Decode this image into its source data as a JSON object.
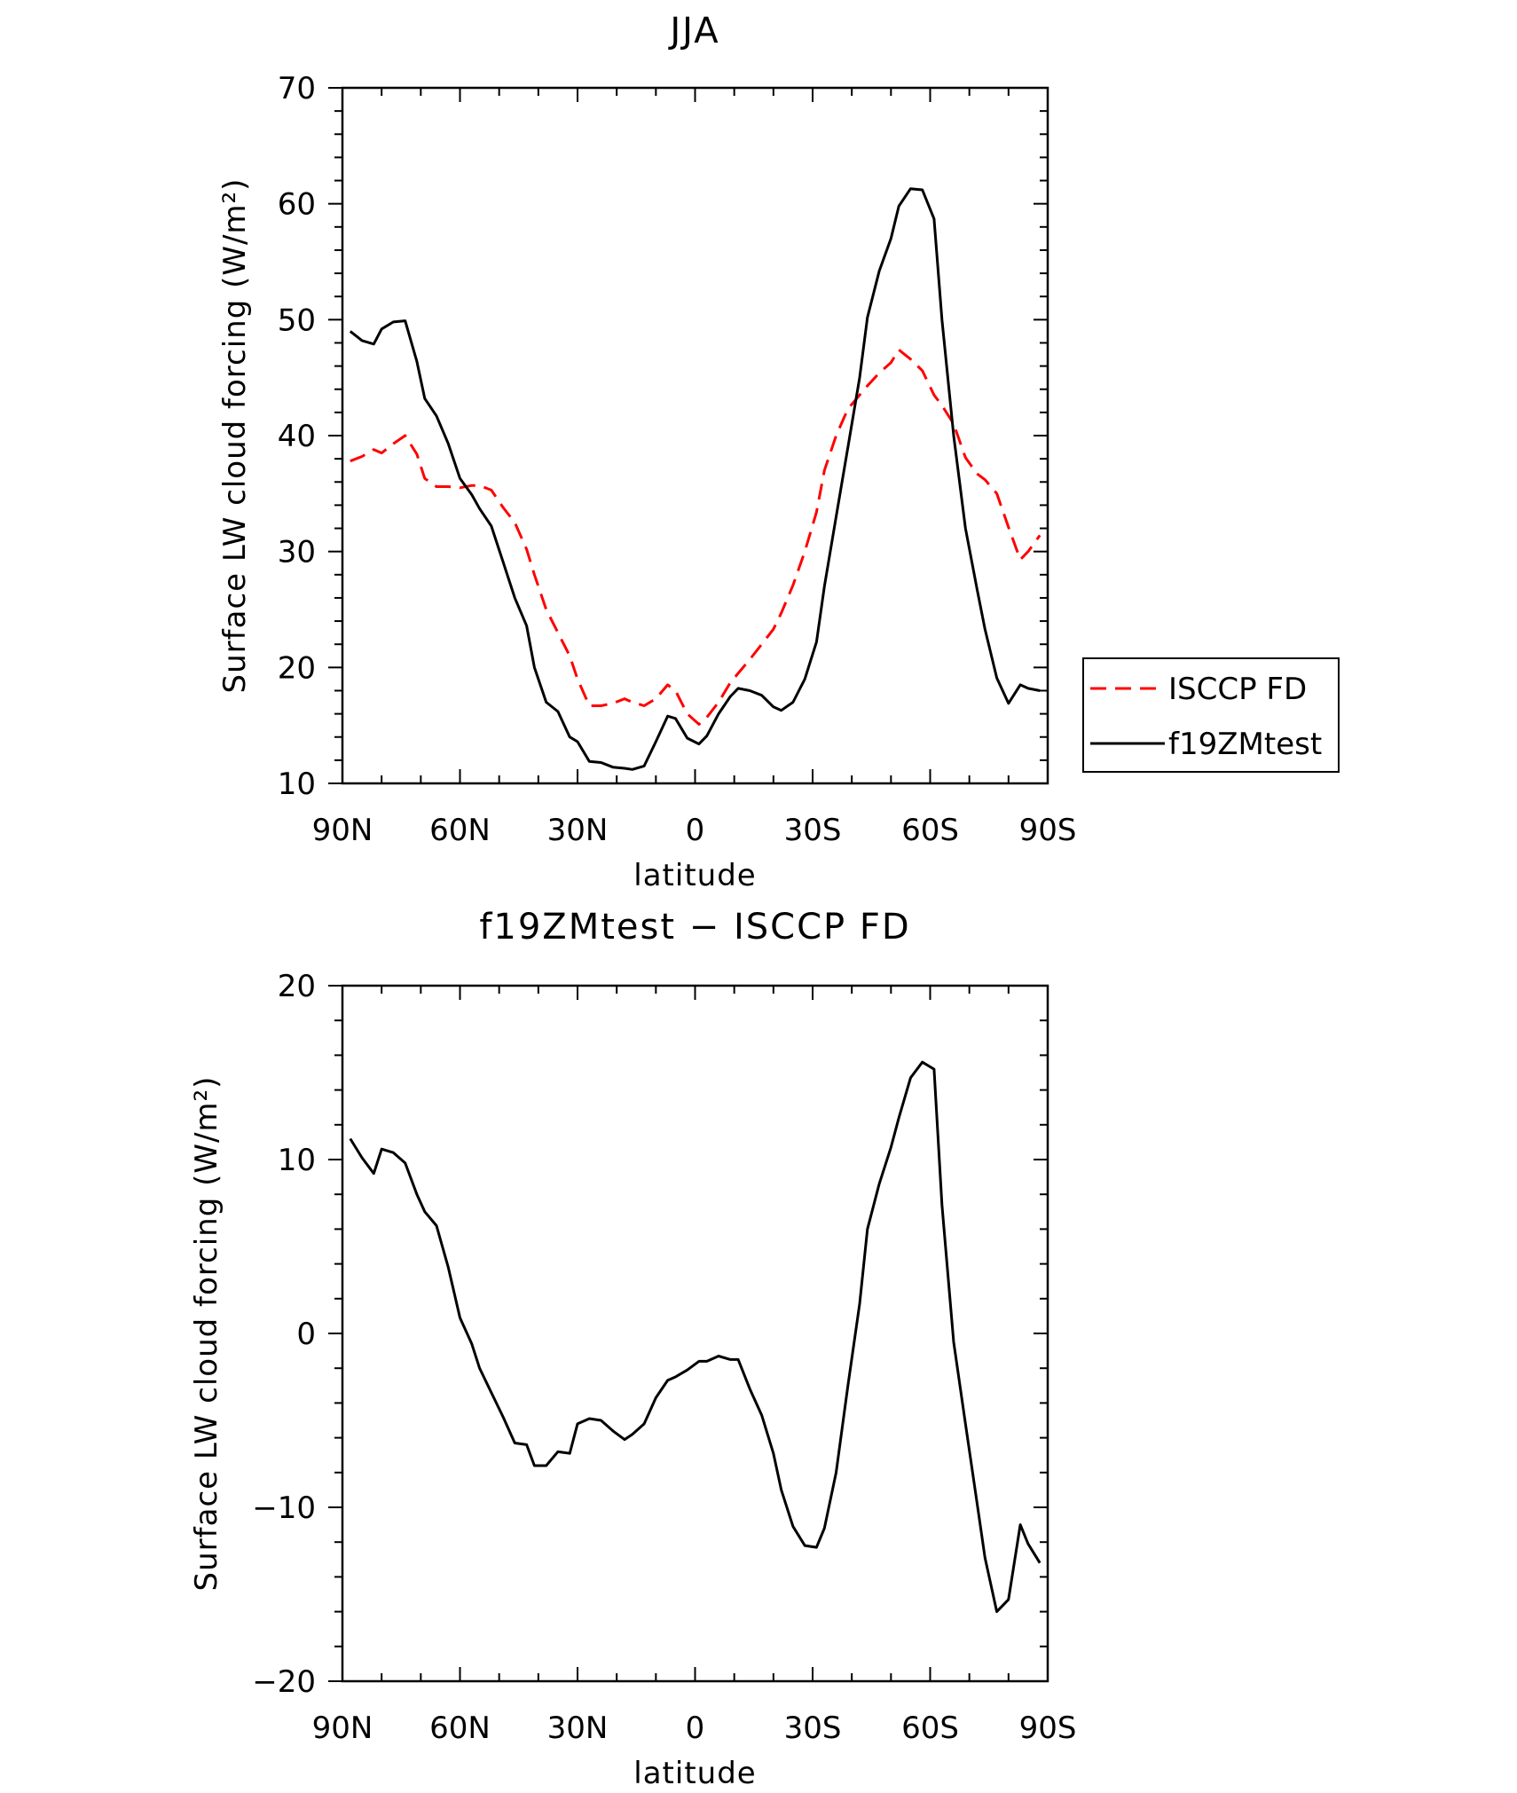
{
  "chart_data": [
    {
      "type": "line",
      "title": "JJA",
      "xlabel": "latitude",
      "ylabel": "Surface LW cloud forcing (W/m²)",
      "xlim": [
        90,
        -90
      ],
      "ylim": [
        10,
        70
      ],
      "x_ticks": [
        90,
        60,
        30,
        0,
        -30,
        -60,
        -90
      ],
      "x_tick_labels": [
        "90N",
        "60N",
        "30N",
        "0",
        "30S",
        "60S",
        "90S"
      ],
      "y_ticks": [
        10,
        20,
        30,
        40,
        50,
        60,
        70
      ],
      "y_tick_labels": [
        "10",
        "20",
        "30",
        "40",
        "50",
        "60",
        "70"
      ],
      "legend_position": "right",
      "series": [
        {
          "name": "ISCCP FD",
          "color": "#ff0000",
          "dash": "dashed",
          "x": [
            88,
            85,
            82,
            80,
            77,
            74,
            71,
            69,
            66,
            63,
            60,
            57,
            55,
            52,
            49,
            46,
            43,
            41,
            38,
            35,
            32,
            30,
            27,
            24,
            21,
            18,
            16,
            13,
            10,
            7,
            5,
            2,
            -1,
            -3,
            -6,
            -9,
            -11,
            -14,
            -17,
            -20,
            -22,
            -25,
            -28,
            -31,
            -33,
            -36,
            -39,
            -42,
            -44,
            -47,
            -50,
            -52,
            -55,
            -58,
            -61,
            -63,
            -66,
            -69,
            -72,
            -74,
            -77,
            -80,
            -83,
            -85,
            -88
          ],
          "y": [
            37.8,
            38.2,
            38.8,
            38.5,
            39.3,
            40.0,
            38.4,
            36.3,
            35.6,
            35.6,
            35.5,
            35.7,
            35.7,
            35.3,
            33.8,
            32.5,
            30.2,
            28.0,
            25.0,
            23.0,
            21.0,
            19.0,
            16.7,
            16.7,
            16.9,
            17.3,
            17.0,
            16.7,
            17.3,
            18.5,
            18.0,
            16.0,
            15.1,
            15.7,
            17.0,
            18.7,
            19.5,
            20.7,
            22.0,
            23.3,
            24.7,
            27.1,
            30.0,
            33.4,
            37.0,
            40.0,
            42.3,
            43.5,
            44.3,
            45.4,
            46.3,
            47.4,
            46.6,
            45.6,
            43.5,
            42.6,
            41.0,
            38.1,
            36.7,
            36.2,
            35.0,
            32.1,
            29.3,
            30.0,
            31.4
          ]
        },
        {
          "name": "f19ZMtest",
          "color": "#000000",
          "dash": "solid",
          "x": [
            88,
            85,
            82,
            80,
            77,
            74,
            71,
            69,
            66,
            63,
            60,
            57,
            55,
            52,
            49,
            46,
            43,
            41,
            38,
            35,
            32,
            30,
            27,
            24,
            21,
            18,
            16,
            13,
            10,
            7,
            5,
            2,
            -1,
            -3,
            -6,
            -9,
            -11,
            -14,
            -17,
            -20,
            -22,
            -25,
            -28,
            -31,
            -33,
            -36,
            -39,
            -42,
            -44,
            -47,
            -50,
            -52,
            -55,
            -58,
            -61,
            -63,
            -66,
            -69,
            -72,
            -74,
            -77,
            -80,
            -83,
            -85,
            -88
          ],
          "y": [
            49.0,
            48.2,
            47.9,
            49.2,
            49.8,
            49.9,
            46.4,
            43.2,
            41.7,
            39.3,
            36.3,
            34.9,
            33.7,
            32.2,
            29.1,
            26.0,
            23.6,
            20.0,
            17.0,
            16.2,
            14.0,
            13.6,
            11.9,
            11.8,
            11.4,
            11.3,
            11.2,
            11.5,
            13.6,
            15.8,
            15.6,
            13.9,
            13.4,
            14.1,
            16.0,
            17.5,
            18.2,
            18.0,
            17.6,
            16.6,
            16.3,
            17.0,
            19.0,
            22.2,
            27.0,
            33.0,
            39.0,
            45.0,
            50.2,
            54.2,
            57.0,
            59.8,
            61.3,
            61.2,
            58.7,
            50.0,
            40.0,
            32.0,
            26.7,
            23.3,
            19.1,
            16.9,
            18.5,
            18.2,
            18.0
          ]
        }
      ]
    },
    {
      "type": "line",
      "title": "f19ZMtest − ISCCP FD",
      "xlabel": "latitude",
      "ylabel": "Surface LW cloud forcing (W/m²)",
      "xlim": [
        90,
        -90
      ],
      "ylim": [
        -20,
        20
      ],
      "x_ticks": [
        90,
        60,
        30,
        0,
        -30,
        -60,
        -90
      ],
      "x_tick_labels": [
        "90N",
        "60N",
        "30N",
        "0",
        "30S",
        "60S",
        "90S"
      ],
      "y_ticks": [
        -20,
        -10,
        0,
        10,
        20
      ],
      "y_tick_labels": [
        "−20",
        "−10",
        "0",
        "10",
        "20"
      ],
      "series": [
        {
          "name": "",
          "color": "#000000",
          "dash": "solid",
          "x": [
            88,
            85,
            82,
            80,
            77,
            74,
            71,
            69,
            66,
            63,
            60,
            57,
            55,
            52,
            49,
            46,
            43,
            41,
            38,
            35,
            32,
            30,
            27,
            24,
            21,
            18,
            16,
            13,
            10,
            7,
            5,
            2,
            -1,
            -3,
            -6,
            -9,
            -11,
            -14,
            -17,
            -20,
            -22,
            -25,
            -28,
            -31,
            -33,
            -36,
            -39,
            -42,
            -44,
            -47,
            -50,
            -52,
            -55,
            -58,
            -61,
            -63,
            -66,
            -69,
            -72,
            -74,
            -77,
            -80,
            -83,
            -85,
            -88
          ],
          "y": [
            11.2,
            10.1,
            9.2,
            10.6,
            10.4,
            9.8,
            8.0,
            7.0,
            6.2,
            3.8,
            0.9,
            -0.6,
            -2.0,
            -3.4,
            -4.8,
            -6.3,
            -6.4,
            -7.6,
            -7.6,
            -6.8,
            -6.9,
            -5.2,
            -4.9,
            -5.0,
            -5.6,
            -6.1,
            -5.8,
            -5.2,
            -3.7,
            -2.7,
            -2.5,
            -2.1,
            -1.6,
            -1.6,
            -1.3,
            -1.5,
            -1.5,
            -3.2,
            -4.7,
            -6.9,
            -9.0,
            -11.1,
            -12.2,
            -12.3,
            -11.2,
            -8.0,
            -3.0,
            1.7,
            6.0,
            8.6,
            10.7,
            12.4,
            14.7,
            15.6,
            15.2,
            7.4,
            -0.5,
            -5.2,
            -9.8,
            -12.9,
            -16.0,
            -15.3,
            -11.0,
            -12.1,
            -13.2
          ]
        }
      ]
    }
  ]
}
